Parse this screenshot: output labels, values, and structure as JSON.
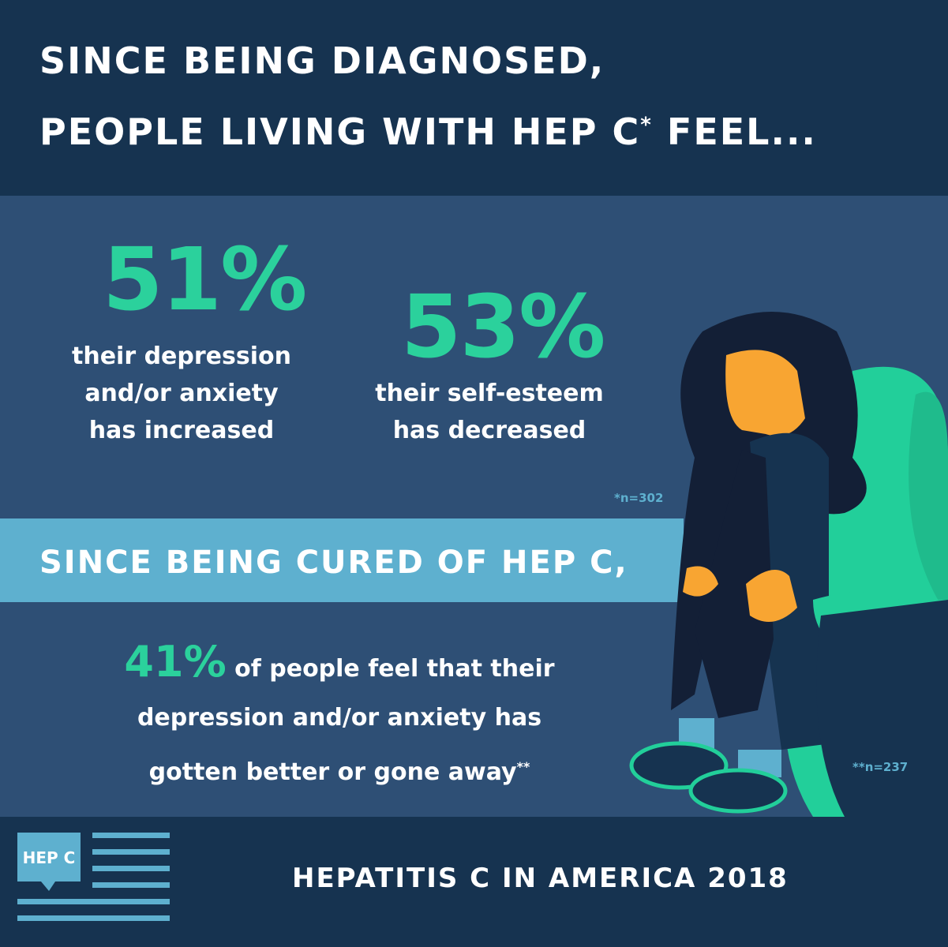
{
  "header": {
    "title_line_1": "SINCE BEING DIAGNOSED,",
    "title_line_2": "PEOPLE LIVING WITH HEP C",
    "title_mark": "*",
    "title_end": "FEEL..."
  },
  "diagnosed": {
    "stats": [
      {
        "value": "51%",
        "lines": [
          "their depression",
          "and/or anxiety",
          "has increased"
        ]
      },
      {
        "value": "53%",
        "lines": [
          "their self-esteem",
          "has decreased"
        ]
      }
    ],
    "footnote": "*n=302"
  },
  "banner": "SINCE BEING CURED OF HEP C,",
  "cured": {
    "value": "41%",
    "lines": [
      "of people feel that their",
      "depression and/or anxiety has",
      "gotten better or gone away"
    ],
    "mark": "**",
    "footnote": "**n=237"
  },
  "footer": {
    "logo": "HEP C",
    "title": "HEPATITIS C IN AMERICA 2018"
  }
}
